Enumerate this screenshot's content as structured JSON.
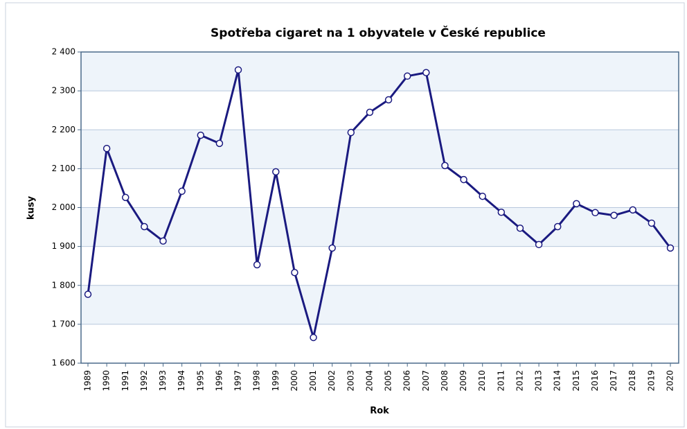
{
  "chart_data": {
    "type": "line",
    "title": "Spotřeba cigaret na 1 obyvatele v České republice",
    "x_label": "Rok",
    "y_label": "kusy",
    "categories": [
      "1989",
      "1990",
      "1991",
      "1992",
      "1993",
      "1994",
      "1995",
      "1996",
      "1997",
      "1998",
      "1999",
      "2000",
      "2001",
      "2002",
      "2003",
      "2004",
      "2005",
      "2006",
      "2007",
      "2008",
      "2009",
      "2010",
      "2011",
      "2012",
      "2013",
      "2014",
      "2015",
      "2016",
      "2017",
      "2018",
      "2019",
      "2020"
    ],
    "series": [
      {
        "name": "kusy",
        "color": "#1a1a80",
        "values": [
          1777,
          2152,
          2026,
          1951,
          1914,
          2042,
          2186,
          2165,
          2354,
          1853,
          2092,
          1833,
          1666,
          1896,
          2193,
          2245,
          2277,
          2338,
          2347,
          2108,
          2072,
          2029,
          1988,
          1947,
          1905,
          1951,
          2010,
          1987,
          1980,
          1994,
          1960,
          1896
        ]
      }
    ],
    "ylim": [
      1600,
      2400
    ],
    "yticks": [
      {
        "value": 1600,
        "label": "1 600"
      },
      {
        "value": 1700,
        "label": "1 700"
      },
      {
        "value": 1800,
        "label": "1 800"
      },
      {
        "value": 1900,
        "label": "1 900"
      },
      {
        "value": 2000,
        "label": "2 000"
      },
      {
        "value": 2100,
        "label": "2 100"
      },
      {
        "value": 2200,
        "label": "2 200"
      },
      {
        "value": 2300,
        "label": "2 300"
      },
      {
        "value": 2400,
        "label": "2 400"
      }
    ],
    "grid": true
  }
}
